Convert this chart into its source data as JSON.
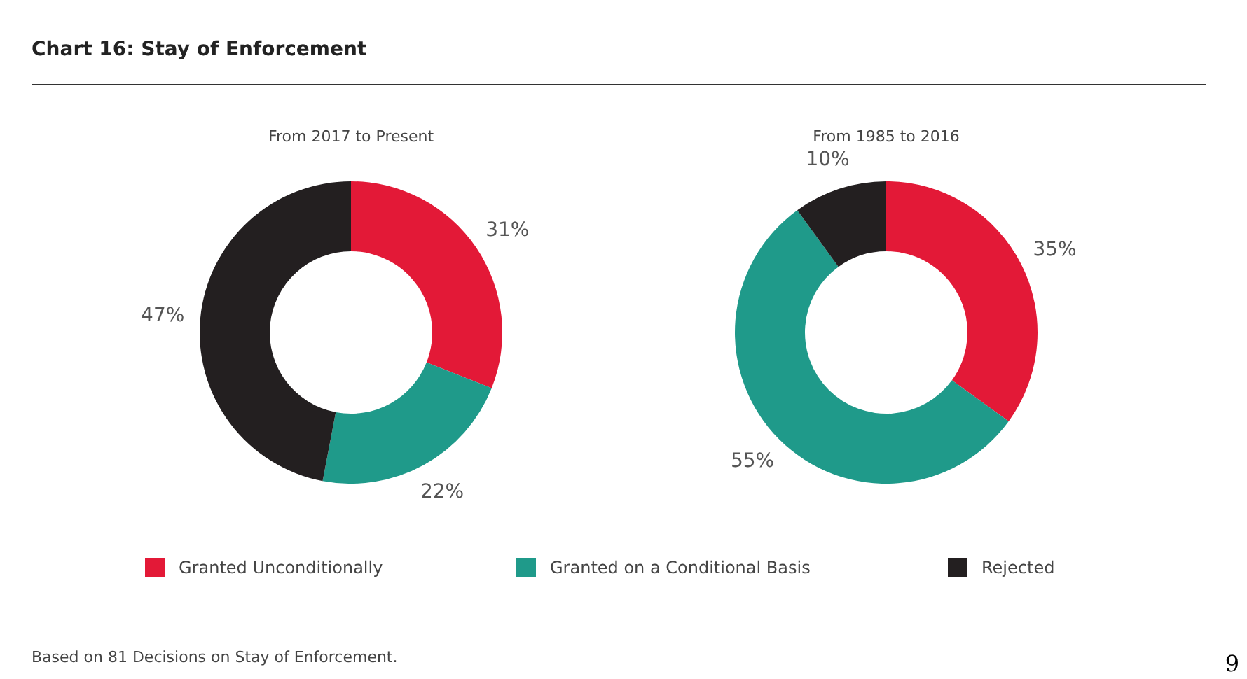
{
  "chart_data": [
    {
      "type": "donut",
      "title": "Chart 16: Stay of Enforcement",
      "subtitle": "From 2017 to Present",
      "categories": [
        "Granted Unconditionally",
        "Granted on a Conditional Basis",
        "Rejected"
      ],
      "values": [
        31,
        22,
        47
      ],
      "value_labels": [
        "31%",
        "22%",
        "47%"
      ],
      "colors": [
        "#e31937",
        "#1f9a8a",
        "#231f20"
      ],
      "legend": "bottom",
      "annotations": [
        "Based on 81 Decisions on Stay of Enforcement."
      ]
    },
    {
      "type": "donut",
      "subtitle": "From 1985 to 2016",
      "categories": [
        null,
        null,
        null
      ],
      "values": [
        35,
        55,
        10
      ],
      "value_labels": [
        "35%",
        "55%",
        "10%"
      ],
      "colors": [
        "#e31937",
        "#1f9a8a",
        "#231f20"
      ],
      "annotations": [
        "9"
      ]
    }
  ]
}
